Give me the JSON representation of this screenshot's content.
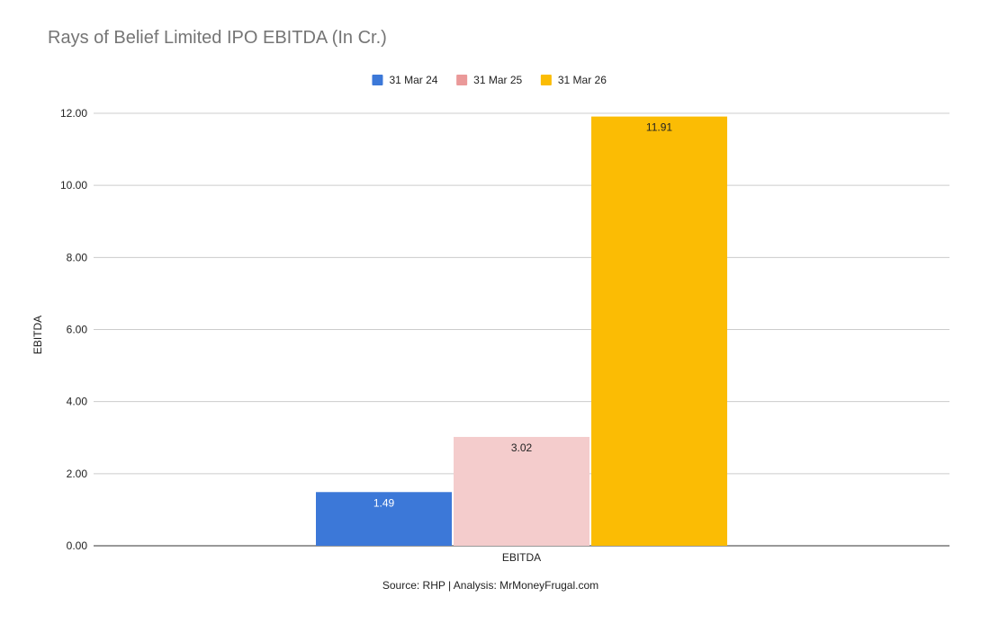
{
  "chart_data": {
    "type": "bar",
    "title": "Rays of Belief Limited IPO EBITDA (In Cr.)",
    "xlabel": "",
    "ylabel": "EBITDA",
    "categories": [
      "EBITDA"
    ],
    "series": [
      {
        "name": "31 Mar 24",
        "values": [
          1.49
        ],
        "color": "#3c78d8",
        "label_color": "#ffffff"
      },
      {
        "name": "31 Mar 25",
        "values": [
          3.02
        ],
        "color": "#f4cccc",
        "label_color": "#222222"
      },
      {
        "name": "31 Mar 26",
        "values": [
          11.91
        ],
        "color": "#fbbc04",
        "label_color": "#222222"
      }
    ],
    "legend_colors": [
      "#3c78d8",
      "#ea9999",
      "#fbbc04"
    ],
    "yticks": [
      "0.00",
      "2.00",
      "4.00",
      "6.00",
      "8.00",
      "10.00",
      "12.00"
    ],
    "ylim": [
      0,
      12
    ],
    "legend_position": "top",
    "grid": true,
    "source": "Source: RHP | Analysis: MrMoneyFrugal.com"
  }
}
